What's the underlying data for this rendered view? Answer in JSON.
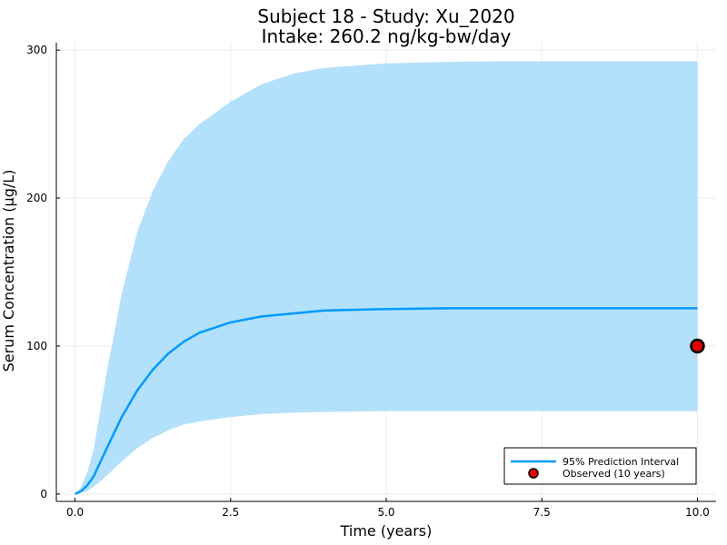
{
  "chart_data": {
    "type": "line",
    "title_line1": "Subject 18 - Study: Xu_2020",
    "title_line2": "Intake: 260.2 ng/kg-bw/day",
    "xlabel": "Time (years)",
    "ylabel": "Serum Concentration (μg/L)",
    "xlim": [
      -0.3,
      10.3
    ],
    "ylim": [
      -5,
      305
    ],
    "xticks": [
      0,
      2.5,
      5,
      7.5,
      10
    ],
    "xtick_labels": [
      "0.0",
      "2.5",
      "5.0",
      "7.5",
      "10.0"
    ],
    "yticks": [
      0,
      100,
      200,
      300
    ],
    "ytick_labels": [
      "0",
      "100",
      "200",
      "300"
    ],
    "grid": true,
    "legend_position": "bottom-right",
    "colors": {
      "band": "#b3e0fb",
      "line": "#009af9",
      "observed_fill": "#e00000",
      "observed_stroke": "#000000"
    },
    "series": [
      {
        "name": "95% Prediction Interval",
        "type": "line",
        "x": [
          0,
          0.1,
          0.2,
          0.3,
          0.5,
          0.75,
          1.0,
          1.25,
          1.5,
          1.75,
          2.0,
          2.5,
          3.0,
          3.5,
          4.0,
          5.0,
          6.0,
          7.0,
          8.0,
          9.0,
          10.0
        ],
        "y": [
          0,
          2,
          6,
          12,
          30,
          52,
          70,
          84,
          95,
          103,
          109,
          116,
          120,
          122,
          124,
          125,
          125.5,
          125.5,
          125.5,
          125.5,
          125.5
        ]
      },
      {
        "name": "95% Prediction Interval band",
        "type": "area",
        "x": [
          0,
          0.1,
          0.2,
          0.3,
          0.5,
          0.75,
          1.0,
          1.25,
          1.5,
          1.75,
          2.0,
          2.5,
          3.0,
          3.5,
          4.0,
          5.0,
          6.0,
          7.0,
          8.0,
          9.0,
          10.0
        ],
        "lower": [
          0,
          1,
          2,
          5,
          12,
          22,
          31,
          38,
          43,
          47,
          49,
          52,
          54,
          55,
          55.5,
          56,
          56,
          56,
          56,
          56,
          56
        ],
        "upper": [
          0,
          5,
          15,
          30,
          80,
          135,
          177,
          205,
          225,
          240,
          250,
          265,
          277,
          284,
          288,
          291,
          292,
          292.5,
          292.5,
          292.5,
          292.5
        ]
      },
      {
        "name": "Observed (10 years)",
        "type": "scatter",
        "x": [
          10.0
        ],
        "y": [
          100
        ]
      }
    ],
    "legend": [
      {
        "label": "95% Prediction Interval",
        "kind": "line"
      },
      {
        "label": "Observed (10 years)",
        "kind": "marker"
      }
    ]
  }
}
